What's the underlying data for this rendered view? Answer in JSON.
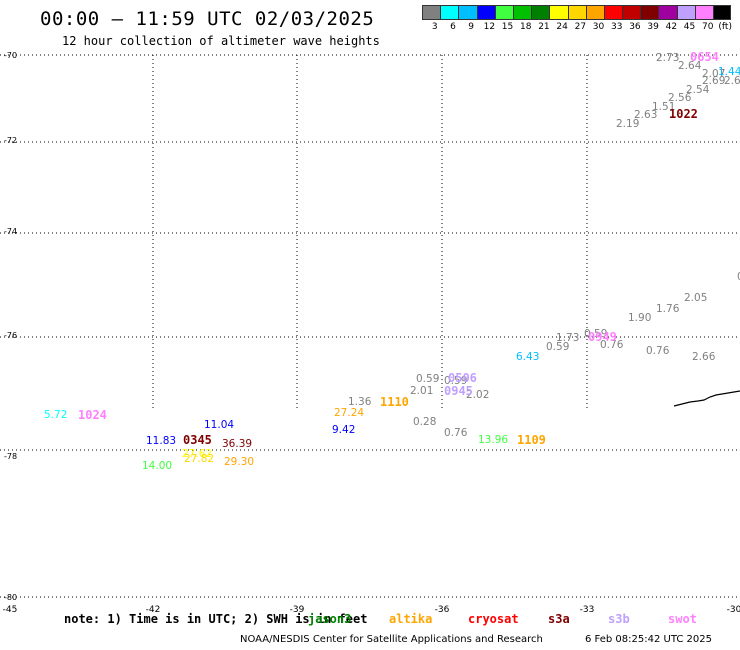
{
  "header": {
    "title": "00:00 – 11:59 UTC 02/03/2025",
    "subtitle": "12 hour collection of altimeter wave heights"
  },
  "colorbar": {
    "colors": [
      "#808080",
      "#00ffff",
      "#00bfff",
      "#0000ff",
      "#40ff40",
      "#00c000",
      "#008000",
      "#ffff00",
      "#ffd700",
      "#ffa500",
      "#ff0000",
      "#c00000",
      "#800000",
      "#a000a0",
      "#c0a0ff",
      "#ff80ff",
      "#000000"
    ],
    "labels": [
      "3",
      "6",
      "9",
      "12",
      "15",
      "18",
      "21",
      "24",
      "27",
      "30",
      "33",
      "36",
      "39",
      "42",
      "45",
      "70",
      "(ft)"
    ]
  },
  "axes": {
    "lat_labels": [
      "-70",
      "-72",
      "-74",
      "-76",
      "-78",
      "-80"
    ],
    "lon_labels": [
      "-45",
      "-42",
      "-39",
      "-36",
      "-33",
      "-30"
    ]
  },
  "wave_values": [
    {
      "text": "2.73",
      "color": "#808080"
    },
    {
      "text": "2.64",
      "color": "#808080"
    },
    {
      "text": "2.07",
      "color": "#808080"
    },
    {
      "text": "2.54",
      "color": "#808080"
    },
    {
      "text": "2.69",
      "color": "#808080"
    },
    {
      "text": "2.6",
      "color": "#808080"
    },
    {
      "text": "1.44",
      "color": "#00bfff"
    },
    {
      "text": "2.56",
      "color": "#808080"
    },
    {
      "text": "1.51",
      "color": "#808080"
    },
    {
      "text": "2.63",
      "color": "#808080"
    },
    {
      "text": "2.19",
      "color": "#808080"
    },
    {
      "text": "2.05",
      "color": "#808080"
    },
    {
      "text": "1.76",
      "color": "#808080"
    },
    {
      "text": "1.90",
      "color": "#808080"
    },
    {
      "text": "1.73",
      "color": "#808080"
    },
    {
      "text": "0.59",
      "color": "#808080"
    },
    {
      "text": "0.59",
      "color": "#808080"
    },
    {
      "text": "0.76",
      "color": "#808080"
    },
    {
      "text": "0.76",
      "color": "#808080"
    },
    {
      "text": "2.66",
      "color": "#808080"
    },
    {
      "text": "6.43",
      "color": "#00bfff"
    },
    {
      "text": "0.59",
      "color": "#808080"
    },
    {
      "text": "0.59",
      "color": "#808080"
    },
    {
      "text": "2.01",
      "color": "#808080"
    },
    {
      "text": "2.02",
      "color": "#808080"
    },
    {
      "text": "1.36",
      "color": "#808080"
    },
    {
      "text": "27.24",
      "color": "#ffa500"
    },
    {
      "text": "9.42",
      "color": "#0000ff"
    },
    {
      "text": "0.28",
      "color": "#808080"
    },
    {
      "text": "0.76",
      "color": "#808080"
    },
    {
      "text": "13.96",
      "color": "#40ff40"
    },
    {
      "text": "5.72",
      "color": "#00ffff"
    },
    {
      "text": "11.04",
      "color": "#0000ff"
    },
    {
      "text": "11.83",
      "color": "#0000ff"
    },
    {
      "text": "36.39",
      "color": "#800000"
    },
    {
      "text": "27.62",
      "color": "#ffff00"
    },
    {
      "text": "27.82",
      "color": "#ffd700"
    },
    {
      "text": "29.30",
      "color": "#ffa500"
    },
    {
      "text": "14.00",
      "color": "#40ff40"
    },
    {
      "text": "0",
      "color": "#808080"
    }
  ],
  "time_labels": [
    {
      "text": "0654",
      "color": "#ff80ff"
    },
    {
      "text": "1022",
      "color": "#800000"
    },
    {
      "text": "0949",
      "color": "#ff80ff"
    },
    {
      "text": "0506",
      "color": "#c0a0ff"
    },
    {
      "text": "0945",
      "color": "#c0a0ff"
    },
    {
      "text": "1110",
      "color": "#ffa500"
    },
    {
      "text": "1109",
      "color": "#ffa500"
    },
    {
      "text": "1024",
      "color": "#ff80ff"
    },
    {
      "text": "0345",
      "color": "#800000"
    }
  ],
  "footer": {
    "note": "note: 1) Time is in UTC; 2) SWH is in feet",
    "satellites": [
      {
        "name": "jason3",
        "color": "#008000"
      },
      {
        "name": "altika",
        "color": "#ffa500"
      },
      {
        "name": "cryosat",
        "color": "#ff0000"
      },
      {
        "name": "s3a",
        "color": "#800000"
      },
      {
        "name": "s3b",
        "color": "#c0a0ff"
      },
      {
        "name": "swot",
        "color": "#ff80ff"
      }
    ],
    "credit": "NOAA/NESDIS Center for Satellite Applications and Research",
    "timestamp": "6 Feb 08:25:42 UTC 2025"
  }
}
